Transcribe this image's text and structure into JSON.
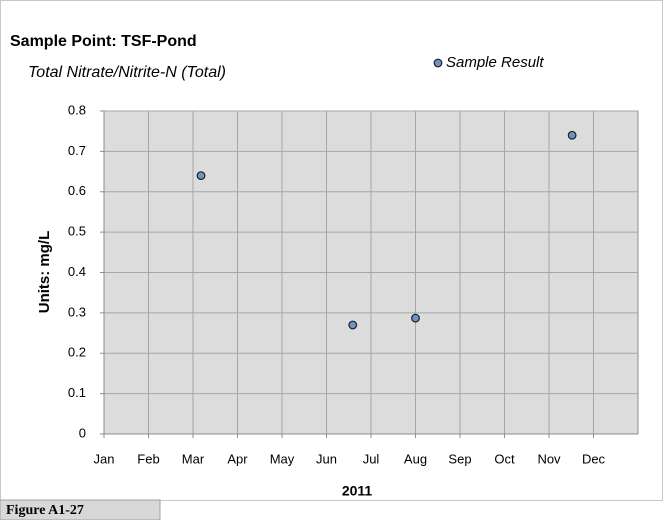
{
  "chart_data": {
    "type": "scatter",
    "title": "Sample Point: TSF-Pond",
    "subtitle": "Total Nitrate/Nitrite-N (Total)",
    "xlabel": "2011",
    "ylabel": "Units:  mg/L",
    "figure_label": "Figure A1-27",
    "series": [
      {
        "name": "Sample Result",
        "color": "#6f93c9",
        "x": [
          2.18,
          5.59,
          7.0,
          10.52
        ],
        "values": [
          0.64,
          0.27,
          0.287,
          0.74
        ]
      }
    ],
    "xlim": [
      0,
      12
    ],
    "xticks": [
      {
        "value": 0,
        "label": "Jan"
      },
      {
        "value": 1,
        "label": "Feb"
      },
      {
        "value": 2,
        "label": "Mar"
      },
      {
        "value": 3,
        "label": "Apr"
      },
      {
        "value": 4,
        "label": "May"
      },
      {
        "value": 5,
        "label": "Jun"
      },
      {
        "value": 6,
        "label": "Jul"
      },
      {
        "value": 7,
        "label": "Aug"
      },
      {
        "value": 8,
        "label": "Sep"
      },
      {
        "value": 9,
        "label": "Oct"
      },
      {
        "value": 10,
        "label": "Nov"
      },
      {
        "value": 11,
        "label": "Dec"
      }
    ],
    "ylim": [
      0,
      0.8
    ],
    "yticks": [
      0,
      0.1,
      0.2,
      0.3,
      0.4,
      0.5,
      0.6,
      0.7,
      0.8
    ],
    "grid": true,
    "legend": "top-right"
  }
}
